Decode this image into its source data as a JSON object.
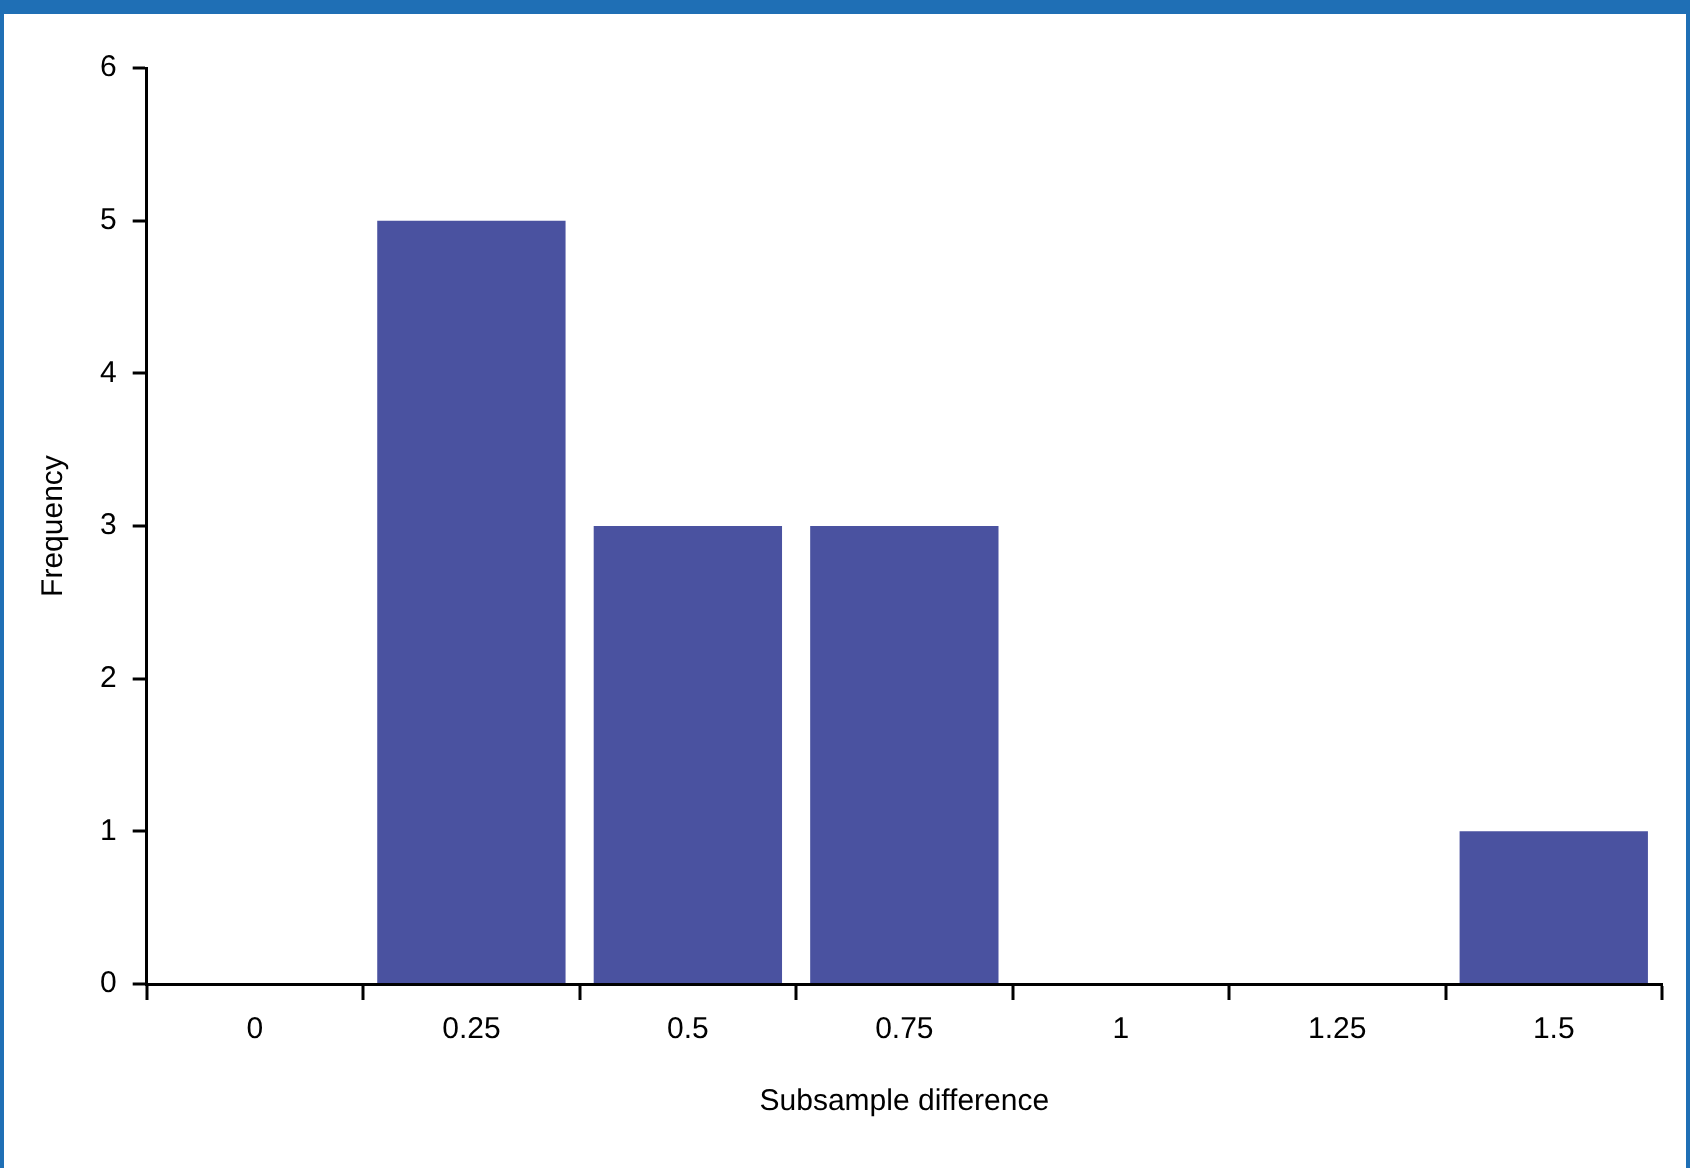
{
  "chart_data": {
    "type": "bar",
    "categories": [
      "0",
      "0.25",
      "0.5",
      "0.75",
      "1",
      "1.25",
      "1.5"
    ],
    "values": [
      0,
      5,
      3,
      3,
      0,
      0,
      1
    ],
    "color": "#4a52a0",
    "xlabel": "Subsample difference",
    "ylabel": "Frequency",
    "ylim": [
      0,
      6
    ],
    "yticks": [
      0,
      1,
      2,
      3,
      4,
      5,
      6
    ],
    "grid": false,
    "legend": false
  }
}
